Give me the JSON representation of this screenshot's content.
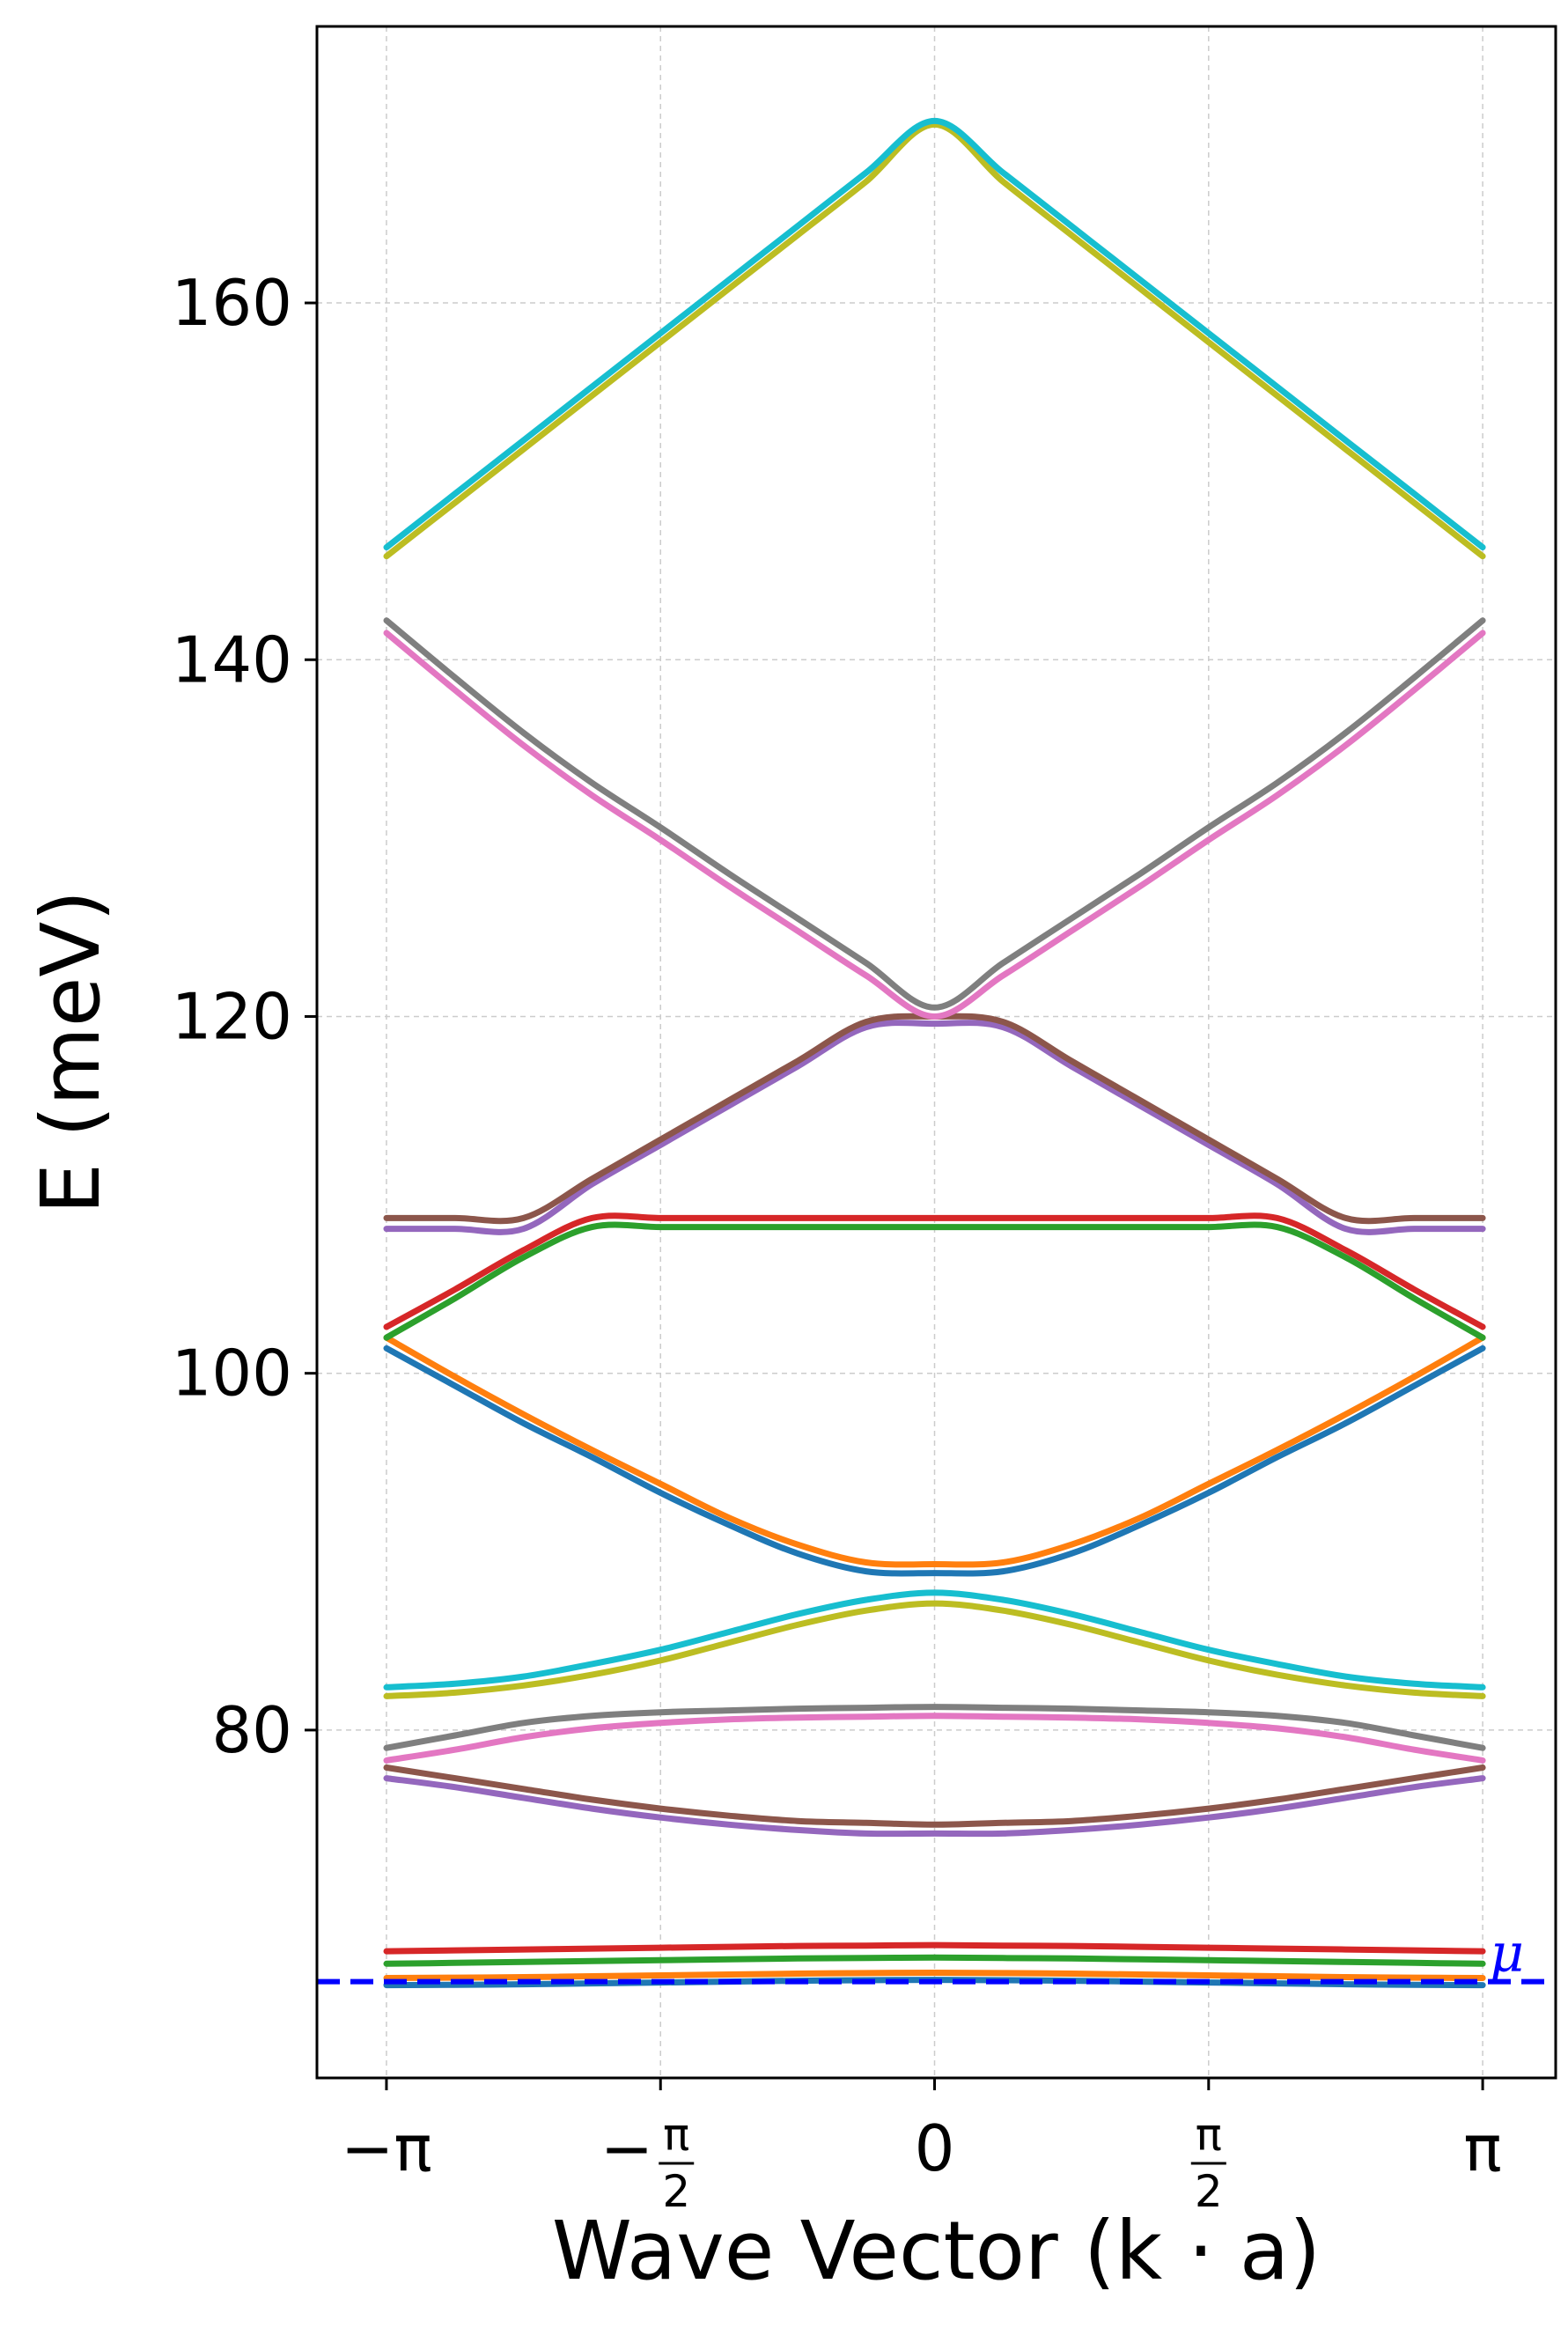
{
  "chart_data": {
    "type": "line",
    "title": "",
    "xlabel": "Wave Vector (k · a)",
    "ylabel": "E (meV)",
    "xlim": [
      -3.54,
      3.56
    ],
    "ylim": [
      60.5,
      175.5
    ],
    "grid": true,
    "x_ticks": [
      {
        "value": -3.14159,
        "label": "−π"
      },
      {
        "value": -1.5708,
        "label": "−π/2"
      },
      {
        "value": 0,
        "label": "0"
      },
      {
        "value": 1.5708,
        "label": "π/2"
      },
      {
        "value": 3.14159,
        "label": "π"
      }
    ],
    "y_ticks": [
      80,
      100,
      120,
      140,
      160
    ],
    "y_tick_labels": [
      "80",
      "100",
      "120",
      "140",
      "160"
    ],
    "x": [
      -3.1416,
      -2.7489,
      -2.3562,
      -1.9635,
      -1.5708,
      -1.1781,
      -0.7854,
      -0.3927,
      0,
      0.3927,
      0.7854,
      1.1781,
      1.5708,
      1.9635,
      2.3562,
      2.7489,
      3.1416
    ],
    "series": [
      {
        "color": "#1f77b4",
        "values": [
          65.7,
          65.72,
          65.75,
          65.8,
          65.85,
          65.9,
          65.95,
          65.98,
          66.0,
          65.98,
          65.95,
          65.9,
          65.85,
          65.8,
          65.75,
          65.72,
          65.7
        ]
      },
      {
        "color": "#ff7f0e",
        "values": [
          66.1,
          66.12,
          66.15,
          66.2,
          66.25,
          66.3,
          66.35,
          66.38,
          66.4,
          66.38,
          66.35,
          66.3,
          66.25,
          66.2,
          66.15,
          66.12,
          66.1
        ]
      },
      {
        "color": "#2ca02c",
        "values": [
          66.9,
          66.95,
          67.0,
          67.05,
          67.1,
          67.15,
          67.2,
          67.22,
          67.25,
          67.22,
          67.2,
          67.15,
          67.1,
          67.05,
          67.0,
          66.95,
          66.9
        ]
      },
      {
        "color": "#d62728",
        "values": [
          67.6,
          67.65,
          67.7,
          67.75,
          67.8,
          67.85,
          67.9,
          67.92,
          67.95,
          67.92,
          67.9,
          67.85,
          67.8,
          67.75,
          67.7,
          67.65,
          67.6
        ]
      },
      {
        "color": "#9467bd",
        "values": [
          77.3,
          76.8,
          76.2,
          75.6,
          75.1,
          74.7,
          74.4,
          74.2,
          74.2,
          74.2,
          74.4,
          74.7,
          75.1,
          75.6,
          76.2,
          76.8,
          77.3
        ]
      },
      {
        "color": "#8c564b",
        "values": [
          77.9,
          77.3,
          76.7,
          76.1,
          75.6,
          75.2,
          74.9,
          74.8,
          74.7,
          74.8,
          74.9,
          75.2,
          75.6,
          76.1,
          76.7,
          77.3,
          77.9
        ]
      },
      {
        "color": "#e377c2",
        "values": [
          78.3,
          78.9,
          79.6,
          80.1,
          80.4,
          80.6,
          80.7,
          80.75,
          80.8,
          80.75,
          80.7,
          80.6,
          80.4,
          80.1,
          79.6,
          78.9,
          78.3
        ]
      },
      {
        "color": "#7f7f7f",
        "values": [
          79.0,
          79.7,
          80.4,
          80.8,
          81.0,
          81.1,
          81.2,
          81.25,
          81.3,
          81.25,
          81.2,
          81.1,
          81.0,
          80.8,
          80.4,
          79.7,
          79.0
        ]
      },
      {
        "color": "#bcbd22",
        "values": [
          81.9,
          82.1,
          82.5,
          83.1,
          83.9,
          84.9,
          85.9,
          86.7,
          87.1,
          86.7,
          85.9,
          84.9,
          83.9,
          83.1,
          82.5,
          82.1,
          81.9
        ]
      },
      {
        "color": "#17becf",
        "values": [
          82.4,
          82.6,
          83.0,
          83.7,
          84.5,
          85.5,
          86.5,
          87.3,
          87.7,
          87.3,
          86.5,
          85.5,
          84.5,
          83.7,
          83.0,
          82.6,
          82.4
        ]
      },
      {
        "color": "#1f77b4",
        "values": [
          101.4,
          99.3,
          97.2,
          95.3,
          93.3,
          91.5,
          89.9,
          88.9,
          88.8,
          88.9,
          89.9,
          91.5,
          93.3,
          95.3,
          97.2,
          99.3,
          101.4
        ]
      },
      {
        "color": "#ff7f0e",
        "values": [
          102.0,
          99.8,
          97.7,
          95.7,
          93.8,
          91.9,
          90.4,
          89.4,
          89.3,
          89.4,
          90.4,
          91.9,
          93.8,
          95.7,
          97.7,
          99.8,
          102.0
        ]
      },
      {
        "color": "#2ca02c",
        "values": [
          102.0,
          104.2,
          106.5,
          108.2,
          108.2,
          108.2,
          108.2,
          108.2,
          108.2,
          108.2,
          108.2,
          108.2,
          108.2,
          108.2,
          106.5,
          104.2,
          102.0
        ]
      },
      {
        "color": "#d62728",
        "values": [
          102.6,
          104.7,
          106.9,
          108.7,
          108.7,
          108.7,
          108.7,
          108.7,
          108.7,
          108.7,
          108.7,
          108.7,
          108.7,
          108.7,
          106.9,
          104.7,
          102.6
        ]
      },
      {
        "color": "#9467bd",
        "values": [
          108.1,
          108.1,
          108.1,
          110.6,
          112.8,
          115.0,
          117.2,
          119.4,
          119.6,
          119.4,
          117.2,
          115.0,
          112.8,
          110.6,
          108.1,
          108.1,
          108.1
        ]
      },
      {
        "color": "#8c564b",
        "values": [
          108.7,
          108.7,
          108.7,
          110.9,
          113.1,
          115.3,
          117.5,
          119.7,
          120.0,
          119.7,
          117.5,
          115.3,
          113.1,
          110.9,
          108.7,
          108.7,
          108.7
        ]
      },
      {
        "color": "#e377c2",
        "values": [
          141.5,
          138.3,
          135.2,
          132.4,
          129.9,
          127.3,
          124.8,
          122.3,
          120.0,
          122.3,
          124.8,
          127.3,
          129.9,
          132.4,
          135.2,
          138.3,
          141.5
        ]
      },
      {
        "color": "#7f7f7f",
        "values": [
          142.2,
          139.0,
          135.9,
          133.1,
          130.6,
          128.0,
          125.5,
          123.0,
          120.5,
          123.0,
          125.5,
          128.0,
          130.6,
          133.1,
          135.9,
          139.0,
          142.2
        ]
      },
      {
        "color": "#bcbd22",
        "values": [
          145.8,
          148.8,
          151.8,
          154.8,
          157.8,
          160.8,
          163.8,
          166.8,
          170.0,
          166.8,
          163.8,
          160.8,
          157.8,
          154.8,
          151.8,
          148.8,
          145.8
        ]
      },
      {
        "color": "#17becf",
        "values": [
          146.3,
          149.3,
          152.3,
          155.3,
          158.3,
          161.3,
          164.3,
          167.3,
          170.2,
          167.3,
          164.3,
          161.3,
          158.3,
          155.3,
          152.3,
          149.3,
          146.3
        ]
      }
    ],
    "reference_line": {
      "name": "μ",
      "y": 65.9,
      "color": "#0000ff",
      "style": "dashed"
    }
  }
}
